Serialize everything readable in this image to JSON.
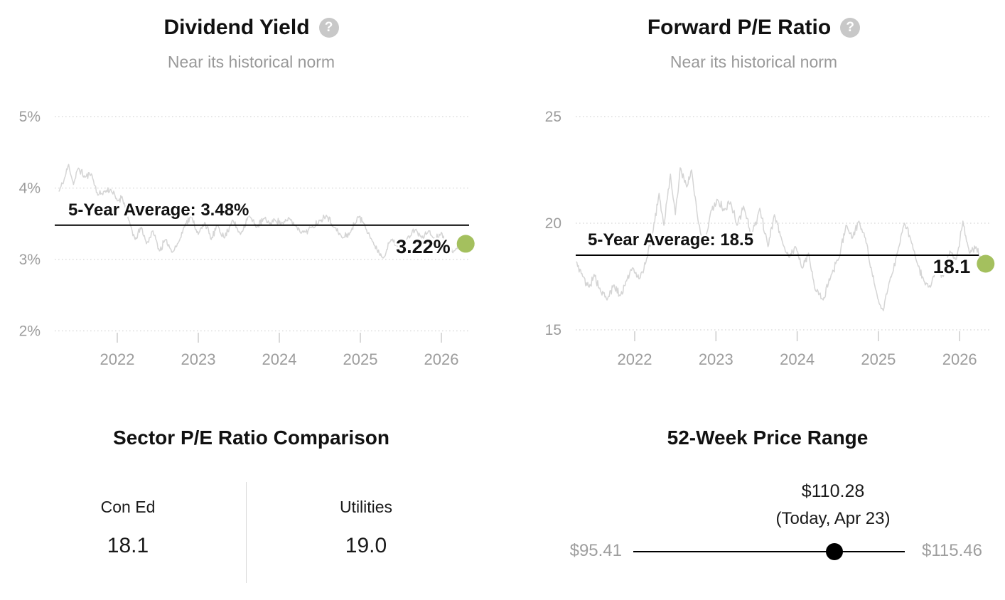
{
  "icons": {
    "help": "?"
  },
  "colors": {
    "accent_dot": "#a4c05e",
    "series_line": "#d5d5d5",
    "grid": "#cccccc",
    "axis_text": "#9d9d9d",
    "title_text": "#111111",
    "subtitle_text": "#999999",
    "help_icon_bg": "#c8c8c8",
    "average_line": "#000000",
    "range_text_gray": "#9e9e9e"
  },
  "chart_data": [
    {
      "type": "line",
      "title": "Dividend Yield",
      "help_icon": "question-mark-icon",
      "subtitle": "Near its historical norm",
      "ylim": [
        2,
        5
      ],
      "xlim": [
        2021.28,
        2026.3
      ],
      "grid": "dotted horizontal",
      "y_ticks": [
        {
          "label": "5%",
          "value": 5
        },
        {
          "label": "4%",
          "value": 4
        },
        {
          "label": "3%",
          "value": 3
        },
        {
          "label": "2%",
          "value": 2
        }
      ],
      "x_ticks": [
        {
          "label": "2022",
          "year": 2022
        },
        {
          "label": "2023",
          "year": 2023
        },
        {
          "label": "2024",
          "year": 2024
        },
        {
          "label": "2025",
          "year": 2025
        },
        {
          "label": "2026",
          "year": 2026
        }
      ],
      "average": {
        "label": "5-Year Average: 3.48%",
        "value": 3.48
      },
      "current": {
        "label": "3.22%",
        "value": 3.22,
        "year": 2026.3
      },
      "series": {
        "name": "Dividend yield (daily)",
        "points_per_year": 110,
        "noise": 0.055,
        "seed": 11,
        "anchors": [
          [
            2021.28,
            3.95
          ],
          [
            2021.34,
            4.1
          ],
          [
            2021.4,
            4.33
          ],
          [
            2021.46,
            4.05
          ],
          [
            2021.52,
            4.28
          ],
          [
            2021.6,
            4.15
          ],
          [
            2021.68,
            4.2
          ],
          [
            2021.76,
            3.9
          ],
          [
            2021.84,
            3.95
          ],
          [
            2021.92,
            3.98
          ],
          [
            2022.0,
            3.82
          ],
          [
            2022.06,
            3.88
          ],
          [
            2022.14,
            3.55
          ],
          [
            2022.22,
            3.28
          ],
          [
            2022.3,
            3.45
          ],
          [
            2022.36,
            3.22
          ],
          [
            2022.44,
            3.4
          ],
          [
            2022.52,
            3.12
          ],
          [
            2022.6,
            3.28
          ],
          [
            2022.68,
            3.1
          ],
          [
            2022.76,
            3.25
          ],
          [
            2022.84,
            3.5
          ],
          [
            2022.92,
            3.6
          ],
          [
            2023.0,
            3.35
          ],
          [
            2023.08,
            3.52
          ],
          [
            2023.16,
            3.28
          ],
          [
            2023.24,
            3.48
          ],
          [
            2023.32,
            3.3
          ],
          [
            2023.42,
            3.55
          ],
          [
            2023.52,
            3.35
          ],
          [
            2023.62,
            3.62
          ],
          [
            2023.72,
            3.45
          ],
          [
            2023.82,
            3.58
          ],
          [
            2023.88,
            3.5
          ],
          [
            2023.95,
            3.55
          ],
          [
            2024.05,
            3.5
          ],
          [
            2024.12,
            3.58
          ],
          [
            2024.2,
            3.47
          ],
          [
            2024.3,
            3.38
          ],
          [
            2024.4,
            3.45
          ],
          [
            2024.5,
            3.55
          ],
          [
            2024.58,
            3.62
          ],
          [
            2024.68,
            3.45
          ],
          [
            2024.78,
            3.3
          ],
          [
            2024.88,
            3.38
          ],
          [
            2024.97,
            3.6
          ],
          [
            2025.05,
            3.5
          ],
          [
            2025.15,
            3.25
          ],
          [
            2025.28,
            3.02
          ],
          [
            2025.38,
            3.28
          ],
          [
            2025.48,
            3.18
          ],
          [
            2025.58,
            3.3
          ],
          [
            2025.68,
            3.42
          ],
          [
            2025.76,
            3.3
          ],
          [
            2025.84,
            3.4
          ],
          [
            2025.92,
            3.28
          ],
          [
            2026.0,
            3.38
          ],
          [
            2026.08,
            3.15
          ],
          [
            2026.16,
            3.12
          ],
          [
            2026.24,
            3.28
          ],
          [
            2026.3,
            3.22
          ]
        ]
      }
    },
    {
      "type": "line",
      "title": "Forward P/E Ratio",
      "help_icon": "question-mark-icon",
      "subtitle": "Near its historical norm",
      "ylim": [
        15,
        25
      ],
      "xlim": [
        2021.28,
        2026.32
      ],
      "grid": "dotted horizontal",
      "y_ticks": [
        {
          "label": "25",
          "value": 25
        },
        {
          "label": "20",
          "value": 20
        },
        {
          "label": "15",
          "value": 15
        }
      ],
      "x_ticks": [
        {
          "label": "2022",
          "year": 2022
        },
        {
          "label": "2023",
          "year": 2023
        },
        {
          "label": "2024",
          "year": 2024
        },
        {
          "label": "2025",
          "year": 2025
        },
        {
          "label": "2026",
          "year": 2026
        }
      ],
      "average": {
        "label": "5-Year Average: 18.5",
        "value": 18.5
      },
      "current": {
        "label": "18.1",
        "value": 18.1,
        "year": 2026.32
      },
      "series": {
        "name": "Forward P/E (daily)",
        "points_per_year": 110,
        "noise": 0.22,
        "seed": 5,
        "anchors": [
          [
            2021.28,
            18.2
          ],
          [
            2021.36,
            17.5
          ],
          [
            2021.44,
            17.0
          ],
          [
            2021.5,
            17.6
          ],
          [
            2021.58,
            16.8
          ],
          [
            2021.66,
            16.4
          ],
          [
            2021.74,
            17.1
          ],
          [
            2021.82,
            16.6
          ],
          [
            2021.9,
            17.3
          ],
          [
            2021.98,
            17.9
          ],
          [
            2022.06,
            17.4
          ],
          [
            2022.14,
            18.2
          ],
          [
            2022.22,
            19.5
          ],
          [
            2022.3,
            21.4
          ],
          [
            2022.36,
            19.9
          ],
          [
            2022.44,
            22.3
          ],
          [
            2022.5,
            20.4
          ],
          [
            2022.56,
            22.6
          ],
          [
            2022.64,
            21.7
          ],
          [
            2022.7,
            22.5
          ],
          [
            2022.78,
            20.1
          ],
          [
            2022.86,
            19.0
          ],
          [
            2022.94,
            20.6
          ],
          [
            2023.02,
            21.1
          ],
          [
            2023.1,
            20.6
          ],
          [
            2023.18,
            21.0
          ],
          [
            2023.26,
            19.9
          ],
          [
            2023.34,
            20.8
          ],
          [
            2023.44,
            19.4
          ],
          [
            2023.54,
            20.7
          ],
          [
            2023.64,
            18.9
          ],
          [
            2023.72,
            20.4
          ],
          [
            2023.82,
            19.1
          ],
          [
            2023.9,
            18.4
          ],
          [
            2023.98,
            18.9
          ],
          [
            2024.06,
            17.9
          ],
          [
            2024.14,
            18.6
          ],
          [
            2024.22,
            16.9
          ],
          [
            2024.32,
            16.4
          ],
          [
            2024.42,
            17.6
          ],
          [
            2024.52,
            18.4
          ],
          [
            2024.6,
            19.9
          ],
          [
            2024.68,
            19.3
          ],
          [
            2024.76,
            20.1
          ],
          [
            2024.84,
            19.3
          ],
          [
            2024.92,
            17.7
          ],
          [
            2025.0,
            16.4
          ],
          [
            2025.06,
            15.9
          ],
          [
            2025.14,
            17.3
          ],
          [
            2025.24,
            18.7
          ],
          [
            2025.32,
            20.0
          ],
          [
            2025.4,
            19.2
          ],
          [
            2025.48,
            18.1
          ],
          [
            2025.56,
            17.3
          ],
          [
            2025.64,
            17.0
          ],
          [
            2025.72,
            17.9
          ],
          [
            2025.8,
            17.5
          ],
          [
            2025.88,
            18.7
          ],
          [
            2025.96,
            18.3
          ],
          [
            2026.04,
            20.1
          ],
          [
            2026.12,
            18.6
          ],
          [
            2026.2,
            18.9
          ],
          [
            2026.26,
            18.4
          ],
          [
            2026.32,
            18.1
          ]
        ]
      }
    },
    {
      "type": "table",
      "title": "Sector P/E Ratio Comparison",
      "columns": [
        {
          "label": "Con Ed",
          "value": "18.1"
        },
        {
          "label": "Utilities",
          "value": "19.0"
        }
      ]
    },
    {
      "type": "range",
      "title": "52-Week Price Range",
      "low": {
        "label": "$95.41",
        "value": 95.41
      },
      "high": {
        "label": "$115.46",
        "value": 115.46
      },
      "current": {
        "label": "$110.28",
        "date_label": "(Today, Apr 23)",
        "value": 110.28
      }
    }
  ]
}
